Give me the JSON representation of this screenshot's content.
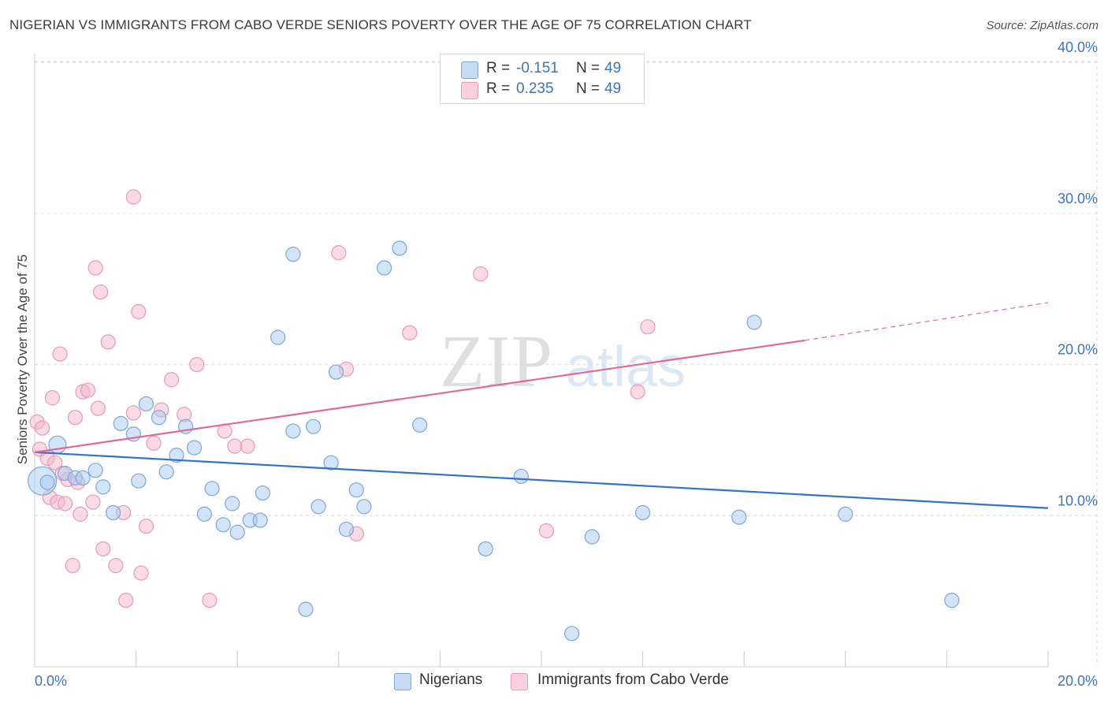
{
  "title": "NIGERIAN VS IMMIGRANTS FROM CABO VERDE SENIORS POVERTY OVER THE AGE OF 75 CORRELATION CHART",
  "source": "Source: ZipAtlas.com",
  "watermark": {
    "zip": "ZIP",
    "atlas": "atlas"
  },
  "legend": {
    "series1": {
      "r_label": "R =",
      "r_value": "-0.151",
      "n_label": "N =",
      "n_value": "49"
    },
    "series2": {
      "r_label": "R =",
      "r_value": "0.235",
      "n_label": "N =",
      "n_value": "49"
    }
  },
  "bottom_legend": {
    "series1": "Nigerians",
    "series2": "Immigrants from Cabo Verde"
  },
  "colors": {
    "blue_fill": "#a9c9ef",
    "blue_stroke": "#7aa6dc",
    "blue_line": "#2f73cc",
    "pink_fill": "#f5b5c8",
    "pink_stroke": "#e89ab2",
    "pink_line": "#e26a92",
    "axis_text": "#3b73c9",
    "grid": "#dcdcdc"
  },
  "chart_data": {
    "type": "scatter",
    "title": "NIGERIAN VS IMMIGRANTS FROM CABO VERDE SENIORS POVERTY OVER THE AGE OF 75 CORRELATION CHART",
    "xlabel": "",
    "ylabel": "Seniors Poverty Over the Age of 75",
    "xlim": [
      0,
      20
    ],
    "ylim": [
      0,
      41
    ],
    "x_tick_labels": [
      {
        "value": 0,
        "label": "0.0%"
      },
      {
        "value": 20,
        "label": "20.0%"
      }
    ],
    "y_tick_labels": [
      {
        "value": 10,
        "label": "10.0%"
      },
      {
        "value": 20,
        "label": "20.0%"
      },
      {
        "value": 30,
        "label": "30.0%"
      },
      {
        "value": 40,
        "label": "40.0%"
      }
    ],
    "x_minor_ticks": [
      2,
      4,
      6,
      8,
      10,
      12,
      14,
      16,
      18,
      20
    ],
    "series": [
      {
        "name": "Nigerians",
        "color": "#a9c9ef",
        "trend": {
          "x0": 0,
          "y0": 14.2,
          "x1": 20,
          "y1": 10.5
        },
        "points": [
          [
            0.15,
            12.3,
            "large"
          ],
          [
            0.45,
            14.7,
            "medium"
          ],
          [
            0.6,
            12.8
          ],
          [
            0.8,
            12.5
          ],
          [
            0.95,
            12.5
          ],
          [
            1.2,
            13.0
          ],
          [
            1.35,
            11.9
          ],
          [
            1.55,
            10.2
          ],
          [
            1.7,
            16.1
          ],
          [
            1.95,
            15.4
          ],
          [
            2.05,
            12.3
          ],
          [
            2.2,
            17.4
          ],
          [
            2.45,
            16.5
          ],
          [
            2.6,
            12.9
          ],
          [
            2.8,
            14.0
          ],
          [
            2.98,
            15.9
          ],
          [
            3.15,
            14.5
          ],
          [
            3.35,
            10.1
          ],
          [
            3.5,
            11.8
          ],
          [
            3.72,
            9.4
          ],
          [
            3.9,
            10.8
          ],
          [
            4.0,
            8.9
          ],
          [
            4.25,
            9.7
          ],
          [
            4.45,
            9.7
          ],
          [
            4.5,
            11.5
          ],
          [
            4.8,
            21.8
          ],
          [
            5.1,
            15.6
          ],
          [
            5.1,
            27.3
          ],
          [
            5.35,
            3.8
          ],
          [
            5.5,
            15.9
          ],
          [
            5.6,
            10.6
          ],
          [
            5.85,
            13.5
          ],
          [
            5.95,
            19.5
          ],
          [
            6.15,
            9.1
          ],
          [
            6.35,
            11.7
          ],
          [
            6.5,
            10.6
          ],
          [
            6.9,
            26.4
          ],
          [
            7.2,
            27.7
          ],
          [
            7.6,
            16.0
          ],
          [
            8.9,
            7.8
          ],
          [
            9.6,
            12.6
          ],
          [
            10.6,
            2.2
          ],
          [
            11.0,
            8.6
          ],
          [
            12.0,
            10.2
          ],
          [
            13.9,
            9.9
          ],
          [
            14.2,
            22.8
          ],
          [
            16.0,
            10.1
          ],
          [
            18.1,
            4.4
          ],
          [
            0.25,
            12.2
          ]
        ]
      },
      {
        "name": "Immigrants from Cabo Verde",
        "color": "#f5b5c8",
        "trend": {
          "x0": 0,
          "y0": 14.2,
          "x1": 15.2,
          "y1": 21.6,
          "dash_x1": 20,
          "dash_y1": 24.1
        },
        "points": [
          [
            0.05,
            16.2
          ],
          [
            0.1,
            14.4
          ],
          [
            0.15,
            15.8
          ],
          [
            0.25,
            13.8
          ],
          [
            0.3,
            11.2
          ],
          [
            0.35,
            17.8
          ],
          [
            0.4,
            13.5
          ],
          [
            0.45,
            10.9
          ],
          [
            0.5,
            20.7
          ],
          [
            0.6,
            10.8
          ],
          [
            0.65,
            12.4
          ],
          [
            0.75,
            6.7
          ],
          [
            0.8,
            16.5
          ],
          [
            0.85,
            12.2
          ],
          [
            0.9,
            10.1
          ],
          [
            0.95,
            18.2
          ],
          [
            1.05,
            18.3
          ],
          [
            1.15,
            10.9
          ],
          [
            1.2,
            26.4
          ],
          [
            1.25,
            17.1
          ],
          [
            1.3,
            24.8
          ],
          [
            1.35,
            7.8
          ],
          [
            1.45,
            21.5
          ],
          [
            1.6,
            6.7
          ],
          [
            1.75,
            10.2
          ],
          [
            1.8,
            4.4
          ],
          [
            1.95,
            16.8
          ],
          [
            1.95,
            31.1
          ],
          [
            2.05,
            23.5
          ],
          [
            2.1,
            6.2
          ],
          [
            2.2,
            9.3
          ],
          [
            2.35,
            14.8
          ],
          [
            2.5,
            17.0
          ],
          [
            2.7,
            19.0
          ],
          [
            2.95,
            16.7
          ],
          [
            3.2,
            20.0
          ],
          [
            3.45,
            4.4
          ],
          [
            3.75,
            15.6
          ],
          [
            3.95,
            14.6
          ],
          [
            4.2,
            14.6
          ],
          [
            6.0,
            27.4
          ],
          [
            6.15,
            19.7
          ],
          [
            6.35,
            8.8
          ],
          [
            7.4,
            22.1
          ],
          [
            8.8,
            26.0
          ],
          [
            10.1,
            9.0
          ],
          [
            11.9,
            18.2
          ],
          [
            12.1,
            22.5
          ],
          [
            0.55,
            12.8
          ]
        ]
      }
    ]
  }
}
